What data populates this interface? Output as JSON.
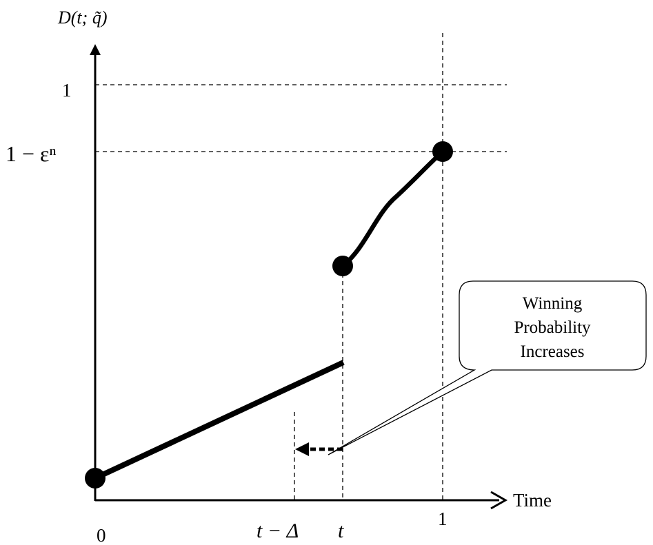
{
  "labels": {
    "y_axis": "D(t; q̃)",
    "y_tick_one": "1",
    "y_tick_upper": "1 − εⁿ",
    "x_origin": "0",
    "x_tick_shift": "t − Δ",
    "x_tick_t": "t",
    "x_tick_one": "1",
    "x_axis": "Time"
  },
  "callout": {
    "line1": "Winning",
    "line2": "Probability",
    "line3": "Increases"
  },
  "colors": {
    "ink": "#000000",
    "background": "#ffffff"
  }
}
